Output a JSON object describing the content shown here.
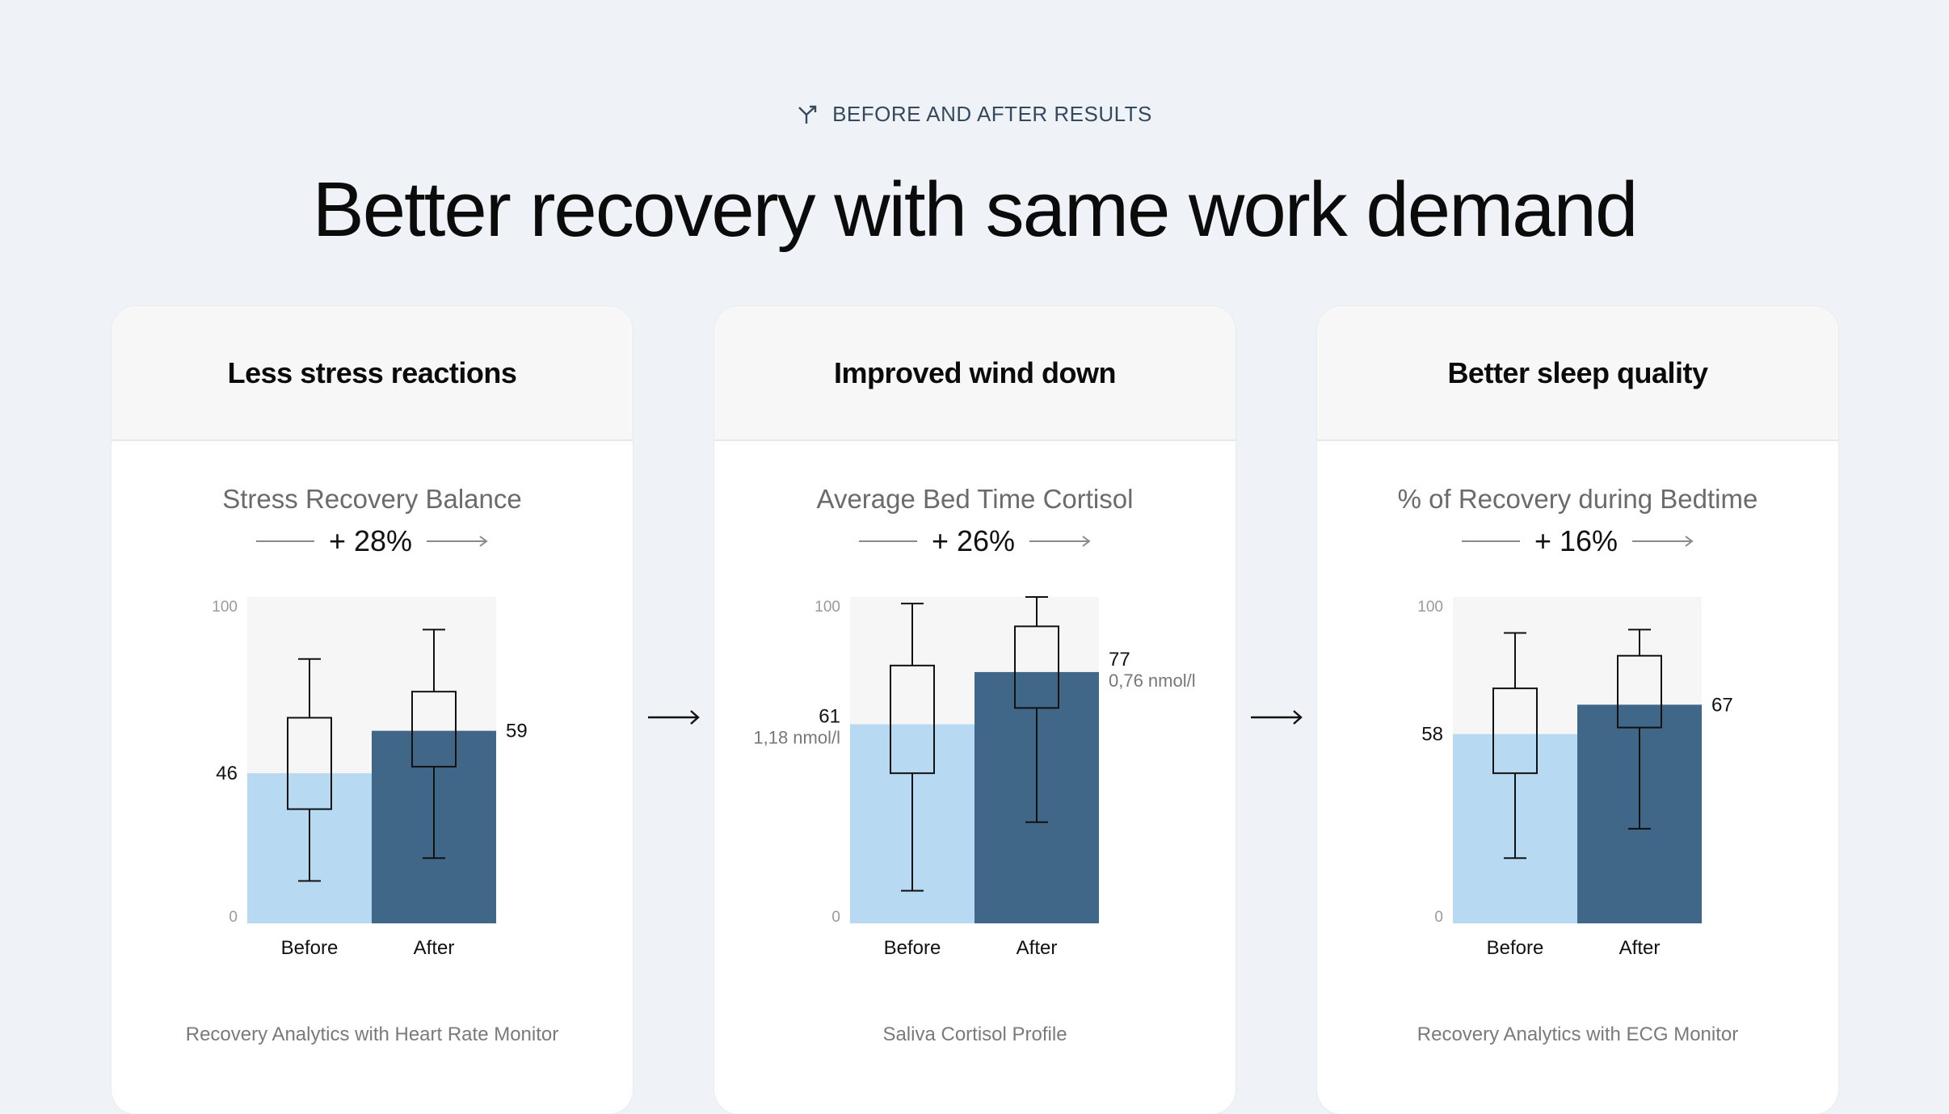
{
  "header": {
    "eyebrow": "BEFORE AND AFTER RESULTS",
    "eyebrow_icon": "split-arrow-icon",
    "title": "Better recovery with same work demand"
  },
  "colors": {
    "background": "#eff3f7",
    "before": "#b7daf2",
    "after": "#416788",
    "chart_bg": "#f6f6f6"
  },
  "cards": [
    {
      "title": "Less stress reactions",
      "metric": "Stress Recovery Balance",
      "change": "+ 28%",
      "source": "Recovery Analytics with Heart Rate Monitor"
    },
    {
      "title": "Improved wind down",
      "metric": "Average Bed Time Cortisol",
      "change": "+ 26%",
      "source": "Saliva Cortisol Profile"
    },
    {
      "title": "Better sleep quality",
      "metric": "% of Recovery during Bedtime",
      "change": "+ 16%",
      "source": "Recovery Analytics with ECG Monitor"
    }
  ],
  "chart_data": [
    {
      "type": "bar",
      "title": "Stress Recovery Balance",
      "categories": [
        "Before",
        "After"
      ],
      "values": [
        46,
        59
      ],
      "value_labels": [
        "46",
        "59"
      ],
      "sub_labels": [
        "",
        ""
      ],
      "ylim": [
        0,
        100
      ],
      "yticks": [
        "0",
        "100"
      ],
      "boxes": [
        {
          "whisker_low": 13,
          "q1": 35,
          "q3": 63,
          "whisker_high": 81
        },
        {
          "whisker_low": 20,
          "q1": 48,
          "q3": 71,
          "whisker_high": 90
        }
      ]
    },
    {
      "type": "bar",
      "title": "Average Bed Time Cortisol",
      "categories": [
        "Before",
        "After"
      ],
      "values": [
        61,
        77
      ],
      "value_labels": [
        "61",
        "77"
      ],
      "sub_labels": [
        "1,18 nmol/l",
        "0,76 nmol/l"
      ],
      "ylim": [
        0,
        100
      ],
      "yticks": [
        "0",
        "100"
      ],
      "boxes": [
        {
          "whisker_low": 10,
          "q1": 46,
          "q3": 79,
          "whisker_high": 98
        },
        {
          "whisker_low": 31,
          "q1": 66,
          "q3": 91,
          "whisker_high": 100
        }
      ]
    },
    {
      "type": "bar",
      "title": "% of Recovery during Bedtime",
      "categories": [
        "Before",
        "After"
      ],
      "values": [
        58,
        67
      ],
      "value_labels": [
        "58",
        "67"
      ],
      "sub_labels": [
        "",
        ""
      ],
      "ylim": [
        0,
        100
      ],
      "yticks": [
        "0",
        "100"
      ],
      "boxes": [
        {
          "whisker_low": 20,
          "q1": 46,
          "q3": 72,
          "whisker_high": 89
        },
        {
          "whisker_low": 29,
          "q1": 60,
          "q3": 82,
          "whisker_high": 90
        }
      ]
    }
  ]
}
